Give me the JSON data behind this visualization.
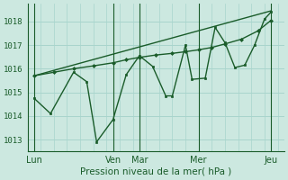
{
  "xlabel": "Pression niveau de la mer( hPa )",
  "bg_color": "#cce8e0",
  "line_color": "#1a5c2a",
  "grid_color": "#a8d4cc",
  "text_color": "#1a5c2a",
  "ylim": [
    1012.5,
    1018.75
  ],
  "xlim": [
    0,
    156
  ],
  "day_labels": [
    "Lun",
    "Ven",
    "Mar",
    "Mer",
    "Jeu"
  ],
  "day_positions": [
    4,
    52,
    68,
    104,
    148
  ],
  "vline_positions": [
    4,
    52,
    68,
    104,
    148
  ],
  "yticks": [
    1013,
    1014,
    1015,
    1016,
    1017,
    1018
  ],
  "trend_x": [
    4,
    148
  ],
  "trend_y": [
    1015.7,
    1018.45
  ],
  "smooth_x": [
    4,
    16,
    28,
    40,
    52,
    60,
    68,
    78,
    88,
    96,
    104,
    112,
    120,
    130,
    140,
    148
  ],
  "smooth_y": [
    1015.7,
    1015.85,
    1016.0,
    1016.12,
    1016.25,
    1016.38,
    1016.48,
    1016.58,
    1016.65,
    1016.72,
    1016.8,
    1016.9,
    1017.05,
    1017.25,
    1017.6,
    1018.05
  ],
  "jagged_x": [
    4,
    14,
    28,
    36,
    42,
    52,
    60,
    68,
    76,
    84,
    88,
    96,
    100,
    108,
    114,
    120,
    126,
    132,
    138,
    144,
    148
  ],
  "jagged_y": [
    1014.75,
    1014.1,
    1015.85,
    1015.45,
    1012.9,
    1013.85,
    1015.75,
    1016.55,
    1016.1,
    1014.85,
    1014.85,
    1017.0,
    1015.55,
    1015.6,
    1017.75,
    1017.1,
    1016.05,
    1016.15,
    1017.0,
    1018.1,
    1018.4
  ]
}
